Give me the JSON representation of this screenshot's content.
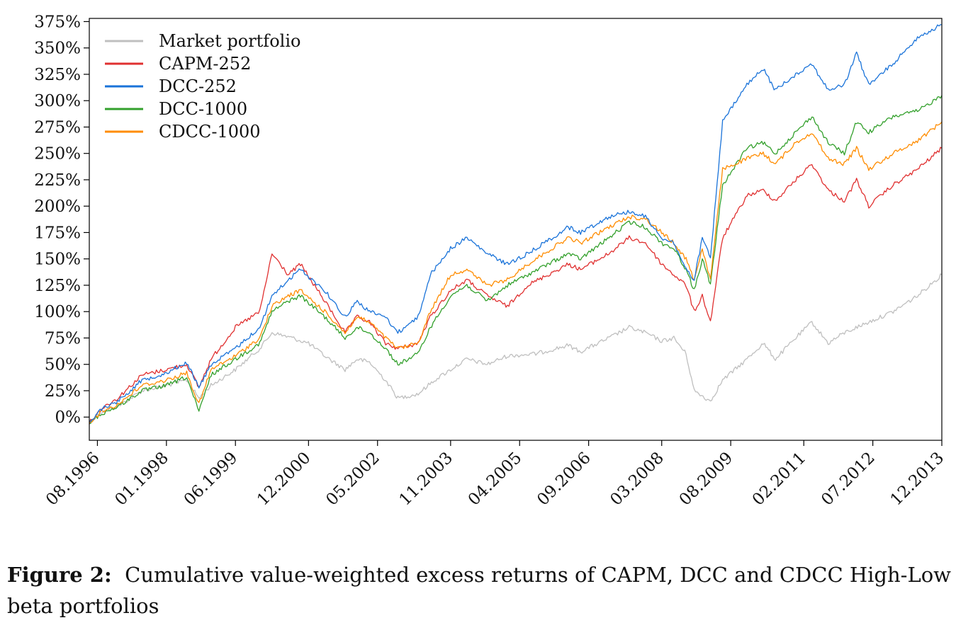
{
  "chart_data": {
    "type": "line",
    "y_unit": "%",
    "ylim": [
      -22,
      378
    ],
    "yticks": [
      "0%",
      "25%",
      "50%",
      "75%",
      "100%",
      "125%",
      "150%",
      "175%",
      "200%",
      "225%",
      "250%",
      "275%",
      "300%",
      "325%",
      "350%",
      "375%"
    ],
    "ytick_values": [
      0,
      25,
      50,
      75,
      100,
      125,
      150,
      175,
      200,
      225,
      250,
      275,
      300,
      325,
      350,
      375
    ],
    "x_range": [
      "1996-06",
      "2013-12"
    ],
    "xticks": [
      "08.1996",
      "01.1998",
      "06.1999",
      "12.2000",
      "05.2002",
      "11.2003",
      "04.2005",
      "09.2006",
      "03.2008",
      "08.2009",
      "02.2011",
      "07.2012",
      "12.2013"
    ],
    "xtick_dates": [
      "1996-08",
      "1998-01",
      "1999-06",
      "2000-12",
      "2002-05",
      "2003-11",
      "2005-04",
      "2006-09",
      "2008-03",
      "2009-08",
      "2011-02",
      "2012-07",
      "2013-12"
    ],
    "legend_position": "top-left",
    "grid": false,
    "series": [
      {
        "name": "Market portfolio",
        "color": "#bfbfbf",
        "points": [
          [
            "1996-06",
            -5
          ],
          [
            "1996-09",
            5
          ],
          [
            "1997-01",
            10
          ],
          [
            "1997-07",
            25
          ],
          [
            "1998-01",
            30
          ],
          [
            "1998-06",
            35
          ],
          [
            "1998-09",
            18
          ],
          [
            "1998-12",
            30
          ],
          [
            "1999-06",
            45
          ],
          [
            "1999-12",
            65
          ],
          [
            "2000-03",
            80
          ],
          [
            "2000-08",
            75
          ],
          [
            "2000-12",
            70
          ],
          [
            "2001-04",
            58
          ],
          [
            "2001-09",
            45
          ],
          [
            "2001-12",
            55
          ],
          [
            "2002-03",
            52
          ],
          [
            "2002-07",
            35
          ],
          [
            "2002-10",
            18
          ],
          [
            "2003-03",
            22
          ],
          [
            "2003-07",
            35
          ],
          [
            "2003-11",
            45
          ],
          [
            "2004-03",
            55
          ],
          [
            "2004-08",
            50
          ],
          [
            "2005-01",
            58
          ],
          [
            "2005-08",
            60
          ],
          [
            "2006-04",
            68
          ],
          [
            "2006-07",
            62
          ],
          [
            "2007-02",
            75
          ],
          [
            "2007-07",
            85
          ],
          [
            "2007-11",
            80
          ],
          [
            "2008-03",
            72
          ],
          [
            "2008-06",
            75
          ],
          [
            "2008-09",
            60
          ],
          [
            "2008-11",
            25
          ],
          [
            "2009-03",
            15
          ],
          [
            "2009-06",
            35
          ],
          [
            "2009-12",
            55
          ],
          [
            "2010-04",
            70
          ],
          [
            "2010-07",
            55
          ],
          [
            "2010-12",
            75
          ],
          [
            "2011-04",
            90
          ],
          [
            "2011-08",
            70
          ],
          [
            "2011-12",
            80
          ],
          [
            "2012-06",
            90
          ],
          [
            "2012-12",
            100
          ],
          [
            "2013-06",
            115
          ],
          [
            "2013-12",
            135
          ]
        ]
      },
      {
        "name": "CAPM-252",
        "color": "#e03030",
        "points": [
          [
            "1996-06",
            -5
          ],
          [
            "1996-09",
            8
          ],
          [
            "1997-01",
            18
          ],
          [
            "1997-07",
            40
          ],
          [
            "1998-01",
            45
          ],
          [
            "1998-06",
            50
          ],
          [
            "1998-09",
            28
          ],
          [
            "1998-12",
            55
          ],
          [
            "1999-06",
            85
          ],
          [
            "1999-12",
            100
          ],
          [
            "2000-03",
            155
          ],
          [
            "2000-07",
            135
          ],
          [
            "2000-10",
            145
          ],
          [
            "2001-04",
            110
          ],
          [
            "2001-09",
            80
          ],
          [
            "2001-12",
            95
          ],
          [
            "2002-03",
            90
          ],
          [
            "2002-07",
            70
          ],
          [
            "2002-10",
            65
          ],
          [
            "2003-03",
            70
          ],
          [
            "2003-06",
            95
          ],
          [
            "2003-11",
            120
          ],
          [
            "2004-03",
            130
          ],
          [
            "2004-08",
            115
          ],
          [
            "2005-01",
            105
          ],
          [
            "2005-06",
            125
          ],
          [
            "2006-04",
            145
          ],
          [
            "2006-07",
            140
          ],
          [
            "2007-02",
            155
          ],
          [
            "2007-07",
            170
          ],
          [
            "2007-11",
            165
          ],
          [
            "2008-03",
            145
          ],
          [
            "2008-06",
            135
          ],
          [
            "2008-09",
            125
          ],
          [
            "2008-11",
            100
          ],
          [
            "2009-01",
            115
          ],
          [
            "2009-03",
            90
          ],
          [
            "2009-06",
            170
          ],
          [
            "2009-12",
            210
          ],
          [
            "2010-04",
            215
          ],
          [
            "2010-07",
            205
          ],
          [
            "2010-12",
            225
          ],
          [
            "2011-04",
            240
          ],
          [
            "2011-08",
            215
          ],
          [
            "2011-12",
            205
          ],
          [
            "2012-03",
            225
          ],
          [
            "2012-06",
            200
          ],
          [
            "2012-12",
            220
          ],
          [
            "2013-06",
            235
          ],
          [
            "2013-12",
            255
          ]
        ]
      },
      {
        "name": "DCC-252",
        "color": "#1a73d9",
        "points": [
          [
            "1996-06",
            -5
          ],
          [
            "1996-09",
            8
          ],
          [
            "1997-01",
            15
          ],
          [
            "1997-07",
            35
          ],
          [
            "1998-01",
            42
          ],
          [
            "1998-06",
            52
          ],
          [
            "1998-09",
            28
          ],
          [
            "1998-12",
            50
          ],
          [
            "1999-06",
            65
          ],
          [
            "1999-12",
            85
          ],
          [
            "2000-03",
            115
          ],
          [
            "2000-07",
            130
          ],
          [
            "2000-10",
            140
          ],
          [
            "2001-04",
            120
          ],
          [
            "2001-09",
            95
          ],
          [
            "2001-12",
            110
          ],
          [
            "2002-03",
            100
          ],
          [
            "2002-07",
            95
          ],
          [
            "2002-10",
            80
          ],
          [
            "2003-03",
            95
          ],
          [
            "2003-06",
            135
          ],
          [
            "2003-11",
            160
          ],
          [
            "2004-03",
            170
          ],
          [
            "2004-08",
            155
          ],
          [
            "2005-01",
            145
          ],
          [
            "2005-06",
            155
          ],
          [
            "2006-04",
            180
          ],
          [
            "2006-07",
            175
          ],
          [
            "2007-02",
            190
          ],
          [
            "2007-07",
            195
          ],
          [
            "2007-11",
            190
          ],
          [
            "2008-03",
            170
          ],
          [
            "2008-06",
            165
          ],
          [
            "2008-09",
            140
          ],
          [
            "2008-11",
            130
          ],
          [
            "2009-01",
            170
          ],
          [
            "2009-03",
            150
          ],
          [
            "2009-06",
            280
          ],
          [
            "2009-12",
            315
          ],
          [
            "2010-04",
            330
          ],
          [
            "2010-07",
            310
          ],
          [
            "2010-12",
            325
          ],
          [
            "2011-04",
            335
          ],
          [
            "2011-08",
            310
          ],
          [
            "2011-12",
            315
          ],
          [
            "2012-03",
            345
          ],
          [
            "2012-06",
            315
          ],
          [
            "2012-12",
            335
          ],
          [
            "2013-06",
            360
          ],
          [
            "2013-12",
            372
          ]
        ]
      },
      {
        "name": "DCC-1000",
        "color": "#33a02c",
        "points": [
          [
            "1996-06",
            -5
          ],
          [
            "1996-09",
            3
          ],
          [
            "1997-01",
            10
          ],
          [
            "1997-07",
            25
          ],
          [
            "1998-01",
            30
          ],
          [
            "1998-06",
            38
          ],
          [
            "1998-09",
            5
          ],
          [
            "1998-12",
            40
          ],
          [
            "1999-06",
            55
          ],
          [
            "1999-12",
            70
          ],
          [
            "2000-03",
            100
          ],
          [
            "2000-07",
            110
          ],
          [
            "2000-10",
            115
          ],
          [
            "2001-04",
            95
          ],
          [
            "2001-09",
            75
          ],
          [
            "2001-12",
            85
          ],
          [
            "2002-03",
            80
          ],
          [
            "2002-07",
            65
          ],
          [
            "2002-10",
            50
          ],
          [
            "2003-03",
            60
          ],
          [
            "2003-06",
            85
          ],
          [
            "2003-11",
            115
          ],
          [
            "2004-03",
            125
          ],
          [
            "2004-08",
            110
          ],
          [
            "2005-01",
            125
          ],
          [
            "2005-06",
            135
          ],
          [
            "2006-04",
            155
          ],
          [
            "2006-07",
            150
          ],
          [
            "2007-02",
            170
          ],
          [
            "2007-07",
            185
          ],
          [
            "2007-11",
            180
          ],
          [
            "2008-03",
            165
          ],
          [
            "2008-06",
            160
          ],
          [
            "2008-09",
            140
          ],
          [
            "2008-11",
            120
          ],
          [
            "2009-01",
            150
          ],
          [
            "2009-03",
            125
          ],
          [
            "2009-06",
            220
          ],
          [
            "2009-12",
            255
          ],
          [
            "2010-04",
            260
          ],
          [
            "2010-07",
            250
          ],
          [
            "2010-12",
            270
          ],
          [
            "2011-04",
            285
          ],
          [
            "2011-08",
            260
          ],
          [
            "2011-12",
            250
          ],
          [
            "2012-03",
            280
          ],
          [
            "2012-06",
            270
          ],
          [
            "2012-12",
            285
          ],
          [
            "2013-06",
            290
          ],
          [
            "2013-12",
            305
          ]
        ]
      },
      {
        "name": "CDCC-1000",
        "color": "#ff8c00",
        "points": [
          [
            "1996-06",
            -5
          ],
          [
            "1996-09",
            5
          ],
          [
            "1997-01",
            12
          ],
          [
            "1997-07",
            30
          ],
          [
            "1998-01",
            35
          ],
          [
            "1998-06",
            42
          ],
          [
            "1998-09",
            12
          ],
          [
            "1998-12",
            45
          ],
          [
            "1999-06",
            58
          ],
          [
            "1999-12",
            75
          ],
          [
            "2000-03",
            105
          ],
          [
            "2000-07",
            115
          ],
          [
            "2000-10",
            120
          ],
          [
            "2001-04",
            100
          ],
          [
            "2001-09",
            80
          ],
          [
            "2001-12",
            95
          ],
          [
            "2002-03",
            90
          ],
          [
            "2002-07",
            75
          ],
          [
            "2002-10",
            65
          ],
          [
            "2003-03",
            70
          ],
          [
            "2003-06",
            100
          ],
          [
            "2003-11",
            135
          ],
          [
            "2004-03",
            140
          ],
          [
            "2004-08",
            125
          ],
          [
            "2005-01",
            130
          ],
          [
            "2005-06",
            145
          ],
          [
            "2006-04",
            170
          ],
          [
            "2006-07",
            165
          ],
          [
            "2007-02",
            180
          ],
          [
            "2007-07",
            190
          ],
          [
            "2007-11",
            188
          ],
          [
            "2008-03",
            175
          ],
          [
            "2008-06",
            165
          ],
          [
            "2008-09",
            150
          ],
          [
            "2008-11",
            130
          ],
          [
            "2009-01",
            160
          ],
          [
            "2009-03",
            130
          ],
          [
            "2009-06",
            235
          ],
          [
            "2009-12",
            245
          ],
          [
            "2010-04",
            250
          ],
          [
            "2010-07",
            240
          ],
          [
            "2010-12",
            260
          ],
          [
            "2011-04",
            270
          ],
          [
            "2011-08",
            245
          ],
          [
            "2011-12",
            240
          ],
          [
            "2012-03",
            255
          ],
          [
            "2012-06",
            235
          ],
          [
            "2012-12",
            250
          ],
          [
            "2013-06",
            262
          ],
          [
            "2013-12",
            280
          ]
        ]
      }
    ]
  },
  "caption": {
    "label": "Figure 2:",
    "text": "Cumulative value-weighted excess returns of CAPM, DCC and CDCC High-Low beta portfolios"
  }
}
